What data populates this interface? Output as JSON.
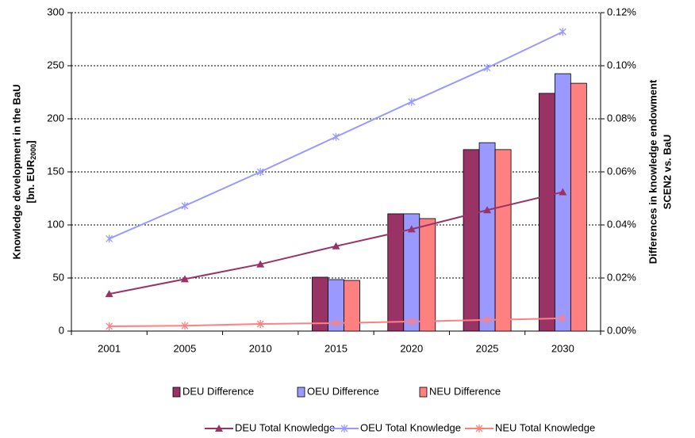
{
  "chart_data": {
    "type": "bar-line",
    "categories": [
      "2001",
      "2005",
      "2010",
      "2015",
      "2020",
      "2025",
      "2030"
    ],
    "ylabel": [
      "Knowledge development in the BaU",
      {
        "text": "[bn. EUR",
        "sub": "2000",
        "end": "]"
      }
    ],
    "y2label": [
      "Differences in knowledge endowment",
      "SCEN2 vs. BaU"
    ],
    "ylim": [
      0,
      300
    ],
    "yticks": [
      0,
      50,
      100,
      150,
      200,
      250,
      300
    ],
    "y2lim": [
      0,
      0.12
    ],
    "y2ticks": [
      {
        "value": 0,
        "label": "0.00%"
      },
      {
        "value": 0.02,
        "label": "0.02%"
      },
      {
        "value": 0.04,
        "label": "0.04%"
      },
      {
        "value": 0.06,
        "label": "0.06%"
      },
      {
        "value": 0.08,
        "label": "0.08%"
      },
      {
        "value": 0.1,
        "label": "0.10%"
      },
      {
        "value": 0.12,
        "label": "0.12%"
      }
    ],
    "grid": true,
    "legend": "bottom",
    "series": [
      {
        "name": "DEU Difference",
        "kind": "bar",
        "axis": "y2",
        "color": "#993366",
        "values": [
          null,
          null,
          null,
          0.0203,
          0.0442,
          0.0684,
          0.0896
        ]
      },
      {
        "name": "OEU Difference",
        "kind": "bar",
        "axis": "y2",
        "color": "#9999ff",
        "values": [
          null,
          null,
          null,
          0.0194,
          0.0442,
          0.071,
          0.097
        ]
      },
      {
        "name": "NEU Difference",
        "kind": "bar",
        "axis": "y2",
        "color": "#ff8080",
        "values": [
          null,
          null,
          null,
          0.0191,
          0.0424,
          0.0684,
          0.0934
        ]
      },
      {
        "name": "DEU Total Knowledge",
        "kind": "line",
        "marker": "triangle",
        "color": "#993366",
        "values": [
          35,
          49,
          63,
          80,
          96,
          114,
          131
        ]
      },
      {
        "name": "OEU Total Knowledge",
        "kind": "line",
        "marker": "asterisk",
        "color": "#9999ff",
        "values": [
          87,
          118,
          150,
          183,
          216,
          248,
          282
        ]
      },
      {
        "name": "NEU Total Knowledge",
        "kind": "line",
        "marker": "asterisk",
        "color": "#ff8080",
        "values": [
          4.5,
          5,
          6.7,
          7.5,
          9,
          10.5,
          12
        ]
      }
    ]
  }
}
